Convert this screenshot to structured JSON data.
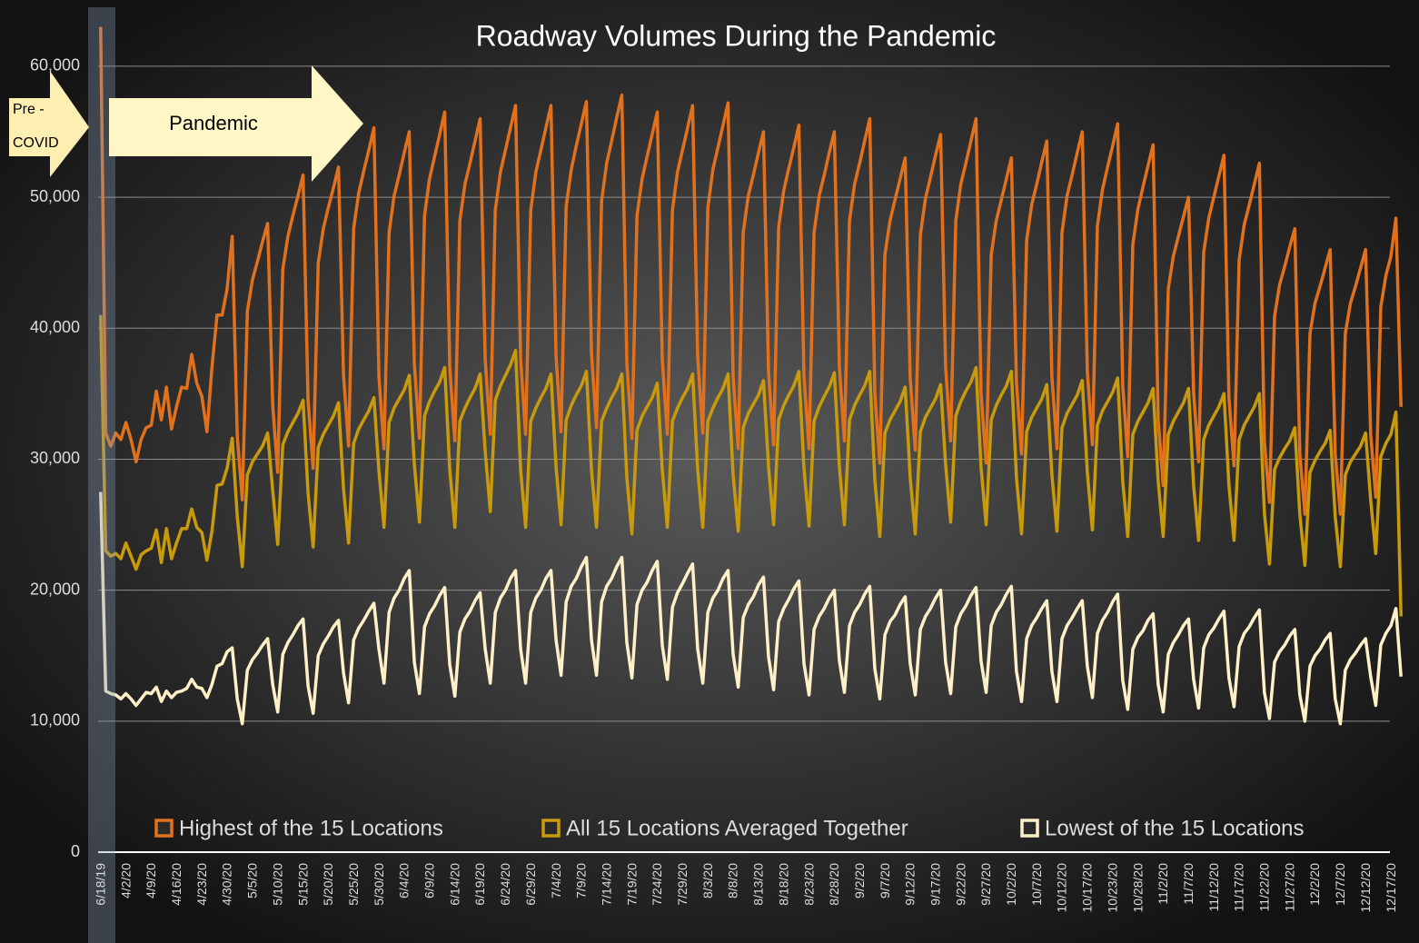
{
  "chart_data": {
    "type": "line",
    "title": "Roadway Volumes During the Pandemic",
    "annotations": {
      "pre_covid": [
        "Pre -",
        "COVID"
      ],
      "pandemic": "Pandemic"
    },
    "categories": [
      "6/18/19",
      null,
      null,
      null,
      null,
      "4/2/20",
      null,
      null,
      null,
      null,
      "4/9/20",
      null,
      null,
      null,
      null,
      "4/16/20",
      null,
      null,
      null,
      null,
      "4/23/20",
      null,
      null,
      null,
      null,
      "4/30/20",
      null,
      null,
      null,
      null,
      "5/5/20",
      null,
      null,
      null,
      null,
      "5/10/20",
      null,
      null,
      null,
      null,
      "5/15/20",
      null,
      null,
      null,
      null,
      "5/20/20",
      null,
      null,
      null,
      null,
      "5/25/20",
      null,
      null,
      null,
      null,
      "5/30/20",
      null,
      null,
      null,
      null,
      "6/4/20",
      null,
      null,
      null,
      null,
      "6/9/20",
      null,
      null,
      null,
      null,
      "6/14/20",
      null,
      null,
      null,
      null,
      "6/19/20",
      null,
      null,
      null,
      null,
      "6/24/20",
      null,
      null,
      null,
      null,
      "6/29/20",
      null,
      null,
      null,
      null,
      "7/4/20",
      null,
      null,
      null,
      null,
      "7/9/20",
      null,
      null,
      null,
      null,
      "7/14/20",
      null,
      null,
      null,
      null,
      "7/19/20",
      null,
      null,
      null,
      null,
      "7/24/20",
      null,
      null,
      null,
      null,
      "7/29/20",
      null,
      null,
      null,
      null,
      "8/3/20",
      null,
      null,
      null,
      null,
      "8/8/20",
      null,
      null,
      null,
      null,
      "8/13/20",
      null,
      null,
      null,
      null,
      "8/18/20",
      null,
      null,
      null,
      null,
      "8/23/20",
      null,
      null,
      null,
      null,
      "8/28/20",
      null,
      null,
      null,
      null,
      "9/2/20",
      null,
      null,
      null,
      null,
      "9/7/20",
      null,
      null,
      null,
      null,
      "9/12/20",
      null,
      null,
      null,
      null,
      "9/17/20",
      null,
      null,
      null,
      null,
      "9/22/20",
      null,
      null,
      null,
      null,
      "9/27/20",
      null,
      null,
      null,
      null,
      "10/2/20",
      null,
      null,
      null,
      null,
      "10/7/20",
      null,
      null,
      null,
      null,
      "10/12/20",
      null,
      null,
      null,
      null,
      "10/17/20",
      null,
      null,
      null,
      null,
      "10/23/20",
      null,
      null,
      null,
      null,
      "10/28/20",
      null,
      null,
      null,
      null,
      "11/2/20",
      null,
      null,
      null,
      null,
      "11/7/20",
      null,
      null,
      null,
      null,
      "11/12/20",
      null,
      null,
      null,
      null,
      "11/17/20",
      null,
      null,
      null,
      null,
      "11/22/20",
      null,
      null,
      null,
      null,
      "11/27/20",
      null,
      null,
      null,
      null,
      "12/2/20",
      null,
      null,
      null,
      null,
      "12/7/20",
      null,
      null,
      null,
      null,
      "12/12/20",
      null,
      null,
      null,
      null,
      "12/17/20",
      null,
      null
    ],
    "series": [
      {
        "name": "Highest of the 15 Locations",
        "color": "#e2711d",
        "values": [
          63000,
          32000,
          31000,
          32000,
          31500,
          32800,
          31500,
          29800,
          31500,
          32400,
          32600,
          35200,
          33000,
          35500,
          32300,
          34000,
          35500,
          35400,
          38000,
          35800,
          34800,
          32100,
          37000,
          41000,
          41000,
          43000,
          47000,
          31700,
          26900,
          41300,
          43700,
          45100,
          46600,
          48000,
          34100,
          29000,
          44500,
          47000,
          48600,
          50100,
          51700,
          34500,
          29300,
          45000,
          47600,
          49200,
          50700,
          52300,
          36500,
          31000,
          47600,
          50300,
          52000,
          53600,
          55300,
          36300,
          30800,
          47300,
          50100,
          51700,
          53400,
          55000,
          37300,
          31600,
          48600,
          51400,
          53100,
          54800,
          56500,
          37000,
          31400,
          48200,
          51000,
          52600,
          54300,
          56000,
          37600,
          31900,
          49000,
          51900,
          53600,
          55300,
          57000,
          37600,
          31900,
          49000,
          51900,
          53600,
          55300,
          57000,
          37800,
          32100,
          49300,
          52100,
          53900,
          55600,
          57300,
          38100,
          32400,
          49700,
          52600,
          54300,
          56100,
          57800,
          37300,
          31600,
          48600,
          51400,
          53100,
          54800,
          56500,
          37600,
          31900,
          49000,
          51900,
          53600,
          55300,
          57000,
          37800,
          32000,
          49200,
          52100,
          53800,
          55500,
          57200,
          36300,
          30800,
          47300,
          50100,
          51700,
          53400,
          55000,
          36600,
          31100,
          47700,
          50500,
          52200,
          53800,
          55500,
          36300,
          30800,
          47300,
          50100,
          51700,
          53400,
          55000,
          37000,
          31400,
          48200,
          51000,
          52600,
          54300,
          56000,
          35000,
          29700,
          45600,
          48200,
          49800,
          51400,
          53000,
          36200,
          30700,
          47100,
          49900,
          51500,
          53200,
          54800,
          37000,
          31400,
          48200,
          51000,
          52600,
          54300,
          56000,
          35000,
          29700,
          45600,
          48200,
          49800,
          51400,
          53000,
          35800,
          30400,
          46700,
          49400,
          51000,
          52700,
          54300,
          36300,
          30800,
          47300,
          50100,
          51700,
          53400,
          55000,
          36700,
          31100,
          47800,
          50600,
          52300,
          53900,
          55600,
          35600,
          30200,
          46400,
          49100,
          50800,
          52400,
          54000,
          33000,
          28000,
          43000,
          45500,
          47000,
          48500,
          50000,
          35100,
          29800,
          45800,
          48400,
          50000,
          51600,
          53200,
          34700,
          29500,
          45200,
          47900,
          49400,
          51000,
          52600,
          31400,
          26700,
          40900,
          43300,
          44700,
          46200,
          47600,
          30400,
          25800,
          39600,
          41900,
          43200,
          44600,
          46000,
          30400,
          25800,
          39600,
          41900,
          43200,
          44600,
          46000,
          31900,
          27100,
          41600,
          44000,
          45500,
          48400,
          34000
        ]
      },
      {
        "name": "All 15 Locations Averaged Together",
        "color": "#c99a0c",
        "values": [
          41000,
          23000,
          22600,
          22800,
          22400,
          23600,
          22600,
          21600,
          22700,
          23000,
          23200,
          24600,
          22100,
          24700,
          22400,
          23600,
          24700,
          24700,
          26200,
          24800,
          24400,
          22300,
          24500,
          28000,
          28100,
          29300,
          31600,
          25600,
          21800,
          28800,
          29800,
          30400,
          31000,
          32000,
          27600,
          23500,
          31100,
          32100,
          32800,
          33500,
          34500,
          27400,
          23300,
          30900,
          31900,
          32600,
          33300,
          34300,
          27800,
          23600,
          31200,
          32300,
          33000,
          33700,
          34700,
          29100,
          24800,
          32800,
          33900,
          34600,
          35300,
          36400,
          29600,
          25200,
          33300,
          34400,
          35200,
          35900,
          37000,
          29200,
          24800,
          32900,
          33900,
          34700,
          35400,
          36500,
          30600,
          26000,
          34500,
          35600,
          36400,
          37200,
          38300,
          29200,
          24800,
          32900,
          33900,
          34700,
          35400,
          36500,
          29400,
          25000,
          33000,
          34100,
          34900,
          35600,
          36700,
          29200,
          24800,
          32900,
          33900,
          34700,
          35400,
          36500,
          28600,
          24300,
          32200,
          33300,
          34000,
          34700,
          35800,
          29200,
          24800,
          32900,
          33900,
          34700,
          35400,
          36500,
          29200,
          24800,
          32900,
          33900,
          34700,
          35400,
          36500,
          28800,
          24500,
          32400,
          33500,
          34200,
          34900,
          36000,
          29400,
          25000,
          33000,
          34100,
          34900,
          35600,
          36700,
          29300,
          24900,
          32900,
          34000,
          34800,
          35500,
          36600,
          29400,
          25000,
          33000,
          34100,
          34900,
          35600,
          36700,
          28400,
          24100,
          32000,
          33000,
          33700,
          34400,
          35500,
          28600,
          24300,
          32100,
          33200,
          33900,
          34600,
          35700,
          29600,
          25200,
          33300,
          34400,
          35200,
          35900,
          37000,
          29400,
          25000,
          33000,
          34100,
          34900,
          35600,
          36700,
          28600,
          24300,
          32100,
          33200,
          33900,
          34600,
          35700,
          28800,
          24500,
          32400,
          33500,
          34200,
          34900,
          36000,
          29000,
          24600,
          32600,
          33700,
          34400,
          35100,
          36200,
          28300,
          24100,
          31900,
          32900,
          33600,
          34300,
          35400,
          28300,
          24100,
          31900,
          32900,
          33600,
          34300,
          35400,
          28000,
          23800,
          31500,
          32600,
          33300,
          34000,
          35000,
          28000,
          23800,
          31500,
          32600,
          33300,
          34000,
          35000,
          25900,
          22000,
          29200,
          30100,
          30800,
          31400,
          32400,
          25800,
          21900,
          29000,
          29900,
          30600,
          31200,
          32200,
          25600,
          21800,
          28800,
          29800,
          30400,
          31000,
          32000,
          26900,
          22800,
          30200,
          31200,
          31900,
          33600,
          18000
        ]
      },
      {
        "name": "Lowest of the 15 Locations",
        "color": "#fff0c8",
        "values": [
          27500,
          12300,
          12100,
          12000,
          11700,
          12100,
          11700,
          11200,
          11700,
          12200,
          12100,
          12600,
          11500,
          12300,
          11800,
          12200,
          12300,
          12500,
          13200,
          12600,
          12500,
          11800,
          12800,
          14200,
          14400,
          15300,
          15600,
          11700,
          9800,
          13900,
          14700,
          15200,
          15800,
          16300,
          12800,
          10700,
          15100,
          16000,
          16600,
          17300,
          17800,
          12700,
          10600,
          15000,
          15900,
          16500,
          17200,
          17700,
          13700,
          11400,
          16200,
          17100,
          17700,
          18400,
          19000,
          15500,
          12900,
          18300,
          19400,
          20000,
          20900,
          21500,
          14500,
          12100,
          17200,
          18200,
          18800,
          19600,
          20200,
          14300,
          11900,
          16800,
          17800,
          18400,
          19200,
          19800,
          15500,
          12900,
          18300,
          19400,
          20000,
          20900,
          21500,
          15500,
          12900,
          18300,
          19400,
          20000,
          20900,
          21500,
          16200,
          13500,
          19100,
          20300,
          20900,
          21800,
          22500,
          16200,
          13500,
          19100,
          20300,
          20900,
          21800,
          22500,
          16000,
          13300,
          18900,
          20000,
          20600,
          21500,
          22200,
          15800,
          13200,
          18700,
          19800,
          20500,
          21300,
          22000,
          15500,
          12900,
          18300,
          19400,
          20000,
          20900,
          21500,
          15100,
          12600,
          17900,
          18900,
          19500,
          20400,
          21000,
          14900,
          12400,
          17600,
          18600,
          19300,
          20100,
          20700,
          14400,
          12000,
          17000,
          18000,
          18600,
          19400,
          20000,
          14600,
          12200,
          17300,
          18300,
          18900,
          19700,
          20300,
          14000,
          11700,
          16600,
          17600,
          18100,
          18900,
          19500,
          14400,
          12000,
          17000,
          18000,
          18600,
          19400,
          20000,
          14500,
          12100,
          17200,
          18200,
          18800,
          19600,
          20200,
          14600,
          12200,
          17300,
          18300,
          18900,
          19700,
          20300,
          13800,
          11500,
          16300,
          17300,
          17900,
          18600,
          19200,
          13800,
          11500,
          16300,
          17300,
          17900,
          18600,
          19200,
          14200,
          11800,
          16700,
          17700,
          18300,
          19100,
          19700,
          13100,
          10900,
          15500,
          16400,
          16900,
          17700,
          18200,
          12800,
          10700,
          15100,
          16000,
          16600,
          17300,
          17800,
          13200,
          11000,
          15600,
          16600,
          17100,
          17800,
          18400,
          13300,
          11100,
          15700,
          16700,
          17200,
          17900,
          18500,
          12200,
          10200,
          14500,
          15300,
          15800,
          16500,
          17000,
          12000,
          10000,
          14200,
          15000,
          15500,
          16200,
          16700,
          11700,
          9800,
          13900,
          14700,
          15200,
          15800,
          16300,
          13400,
          11200,
          15800,
          16700,
          17300,
          18600,
          13400
        ]
      }
    ],
    "ylim": [
      0,
      64500
    ],
    "yticks": [
      0,
      {
        "value": 10000,
        "label": "10,000"
      },
      {
        "value": 20000,
        "label": "20,000"
      },
      {
        "value": 30000,
        "label": "30,000"
      },
      {
        "value": 40000,
        "label": "40,000"
      },
      {
        "value": 50000,
        "label": "50,000"
      },
      {
        "value": 60000,
        "label": "60,000"
      }
    ],
    "grid": true,
    "legend": "bottom"
  }
}
